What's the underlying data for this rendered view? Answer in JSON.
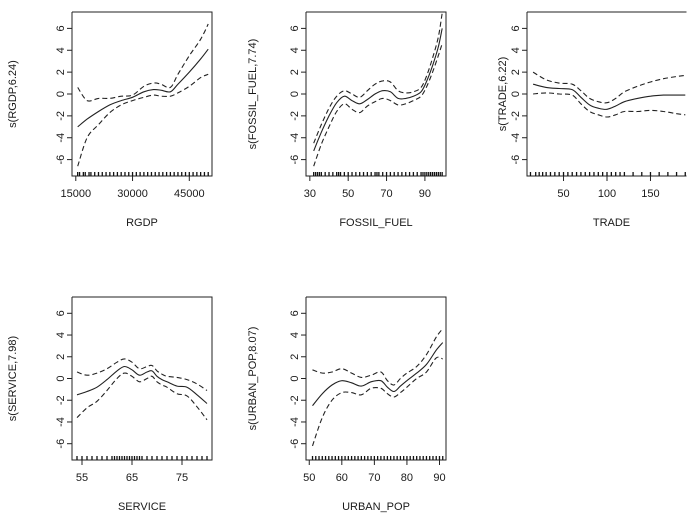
{
  "chart_data": [
    {
      "type": "line",
      "xlabel": "RGDP",
      "ylabel": "s(RGDP,6.24)",
      "xlim": [
        14000,
        51000
      ],
      "ylim": [
        -7.5,
        7.5
      ],
      "xticks": [
        "15000",
        "30000",
        "45000"
      ],
      "xtick_values": [
        15000,
        30000,
        45000
      ],
      "yticks": [
        "-6",
        "-4",
        "-2",
        "0",
        "2",
        "4",
        "6"
      ],
      "ytick_values": [
        -6,
        -4,
        -2,
        0,
        2,
        4,
        6
      ],
      "series": [
        {
          "style": "solid",
          "x": [
            15500,
            18000,
            21000,
            24000,
            27000,
            30000,
            33000,
            35500,
            37500,
            40000,
            42000,
            45000,
            48000,
            50000
          ],
          "y": [
            -3.0,
            -2.3,
            -1.6,
            -1.0,
            -0.6,
            -0.3,
            0.2,
            0.4,
            0.35,
            0.2,
            0.9,
            2.0,
            3.2,
            4.1
          ]
        },
        {
          "style": "dashed",
          "x": [
            15500,
            18000,
            21000,
            24000,
            27000,
            30000,
            33000,
            35500,
            37500,
            40000,
            42000,
            45000,
            48000,
            50000
          ],
          "y": [
            0.6,
            -0.6,
            -0.4,
            -0.4,
            -0.2,
            -0.1,
            0.7,
            1.0,
            0.9,
            0.6,
            1.8,
            3.5,
            5.0,
            6.4
          ]
        },
        {
          "style": "dashed",
          "x": [
            15500,
            18000,
            21000,
            24000,
            27000,
            30000,
            33000,
            35500,
            37500,
            40000,
            42000,
            45000,
            48000,
            50000
          ],
          "y": [
            -6.6,
            -4.0,
            -2.8,
            -1.7,
            -1.0,
            -0.6,
            -0.3,
            -0.1,
            -0.2,
            -0.2,
            0.1,
            0.7,
            1.5,
            1.8
          ]
        }
      ],
      "rug": [
        15500,
        16000,
        17000,
        17500,
        18500,
        19000,
        20000,
        21000,
        22000,
        23000,
        24000,
        25000,
        26000,
        27000,
        28000,
        29000,
        30000,
        31000,
        32000,
        33000,
        34000,
        35000,
        36000,
        37000,
        38000,
        39000,
        40000,
        41000,
        42000,
        43000,
        44000,
        45000,
        46000,
        47000,
        48000,
        49000,
        50000
      ]
    },
    {
      "type": "line",
      "xlabel": "FOSSIL_FUEL",
      "ylabel": "s(FOSSIL_FUEL,7.74)",
      "xlim": [
        28,
        101
      ],
      "ylim": [
        -7.5,
        7.5
      ],
      "xticks": [
        "30",
        "50",
        "70",
        "90"
      ],
      "xtick_values": [
        30,
        50,
        70,
        90
      ],
      "yticks": [
        "-6",
        "-4",
        "-2",
        "0",
        "2",
        "4",
        "6"
      ],
      "ytick_values": [
        -6,
        -4,
        -2,
        0,
        2,
        4,
        6
      ],
      "series": [
        {
          "style": "solid",
          "x": [
            32,
            36,
            40,
            44,
            48,
            52,
            56,
            60,
            64,
            68,
            72,
            76,
            80,
            84,
            88,
            91,
            94,
            97,
            99
          ],
          "y": [
            -5.2,
            -3.5,
            -2.0,
            -0.8,
            -0.2,
            -0.6,
            -0.9,
            -0.5,
            0.0,
            0.3,
            0.2,
            -0.4,
            -0.4,
            -0.2,
            0.2,
            1.2,
            2.6,
            4.3,
            6.0
          ]
        },
        {
          "style": "dashed",
          "x": [
            32,
            36,
            40,
            44,
            48,
            52,
            56,
            60,
            64,
            68,
            72,
            76,
            80,
            84,
            88,
            91,
            94,
            97,
            99
          ],
          "y": [
            -4.5,
            -2.8,
            -1.3,
            -0.2,
            0.3,
            0.0,
            -0.3,
            0.3,
            0.9,
            1.2,
            1.1,
            0.3,
            0.1,
            0.2,
            0.6,
            1.7,
            3.3,
            5.2,
            7.4
          ]
        },
        {
          "style": "dashed",
          "x": [
            32,
            36,
            40,
            44,
            48,
            52,
            56,
            60,
            64,
            68,
            72,
            76,
            80,
            84,
            88,
            91,
            94,
            97,
            99
          ],
          "y": [
            -6.6,
            -4.6,
            -3.0,
            -1.6,
            -0.9,
            -1.4,
            -1.7,
            -1.1,
            -0.7,
            -0.4,
            -0.6,
            -1.0,
            -0.9,
            -0.6,
            -0.2,
            0.7,
            2.0,
            3.5,
            4.6
          ]
        }
      ],
      "rug": [
        32,
        33,
        34,
        35,
        36,
        38,
        40,
        42,
        44,
        45,
        46,
        48,
        50,
        52,
        54,
        56,
        58,
        60,
        62,
        64,
        65,
        66,
        68,
        70,
        72,
        74,
        76,
        78,
        80,
        82,
        84,
        86,
        88,
        89,
        90,
        91,
        92,
        93,
        94,
        95,
        96,
        97,
        98,
        99
      ]
    },
    {
      "type": "line",
      "xlabel": "TRADE",
      "ylabel": "s(TRADE,6.22)",
      "xlim": [
        8,
        192
      ],
      "ylim": [
        -7.5,
        7.5
      ],
      "xticks": [
        "50",
        "100",
        "150"
      ],
      "xtick_values": [
        50,
        100,
        150
      ],
      "yticks": [
        "-6",
        "-4",
        "-2",
        "0",
        "2",
        "4",
        "6"
      ],
      "ytick_values": [
        -6,
        -4,
        -2,
        0,
        2,
        4,
        6
      ],
      "series": [
        {
          "style": "solid",
          "x": [
            15,
            30,
            45,
            60,
            70,
            80,
            90,
            100,
            110,
            120,
            135,
            150,
            165,
            180,
            190
          ],
          "y": [
            0.9,
            0.6,
            0.5,
            0.4,
            -0.3,
            -1.0,
            -1.3,
            -1.4,
            -1.1,
            -0.7,
            -0.4,
            -0.2,
            -0.1,
            -0.1,
            -0.1
          ]
        },
        {
          "style": "dashed",
          "x": [
            15,
            30,
            45,
            60,
            70,
            80,
            90,
            100,
            110,
            120,
            135,
            150,
            165,
            180,
            190
          ],
          "y": [
            2.0,
            1.3,
            1.0,
            0.9,
            0.3,
            -0.4,
            -0.7,
            -0.8,
            -0.4,
            0.2,
            0.7,
            1.1,
            1.4,
            1.6,
            1.7
          ]
        },
        {
          "style": "dashed",
          "x": [
            15,
            30,
            45,
            60,
            70,
            80,
            90,
            100,
            110,
            120,
            135,
            150,
            165,
            180,
            190
          ],
          "y": [
            0.0,
            0.1,
            0.0,
            -0.1,
            -0.9,
            -1.6,
            -1.9,
            -2.1,
            -1.9,
            -1.6,
            -1.6,
            -1.5,
            -1.6,
            -1.8,
            -1.9
          ]
        }
      ],
      "rug": [
        12,
        18,
        22,
        26,
        30,
        35,
        40,
        45,
        50,
        55,
        60,
        65,
        70,
        75,
        80,
        85,
        90,
        95,
        100,
        105,
        110,
        115,
        120,
        130,
        140,
        150,
        160,
        170,
        180,
        190
      ]
    },
    {
      "type": "line",
      "xlabel": "SERVICE",
      "ylabel": "s(SERVICE,7.98)",
      "xlim": [
        53,
        81
      ],
      "ylim": [
        -7.5,
        7.5
      ],
      "xticks": [
        "55",
        "65",
        "75"
      ],
      "xtick_values": [
        55,
        65,
        75
      ],
      "yticks": [
        "-6",
        "-4",
        "-2",
        "0",
        "2",
        "4",
        "6"
      ],
      "ytick_values": [
        -6,
        -4,
        -2,
        0,
        2,
        4,
        6
      ],
      "series": [
        {
          "style": "solid",
          "x": [
            54,
            56,
            58,
            60,
            62,
            63.5,
            65,
            66.5,
            68,
            69,
            70,
            71,
            72,
            74,
            76,
            78,
            80
          ],
          "y": [
            -1.5,
            -1.2,
            -0.8,
            -0.1,
            0.7,
            1.1,
            0.8,
            0.3,
            0.6,
            0.7,
            0.2,
            -0.1,
            -0.3,
            -0.7,
            -0.8,
            -1.5,
            -2.3
          ]
        },
        {
          "style": "dashed",
          "x": [
            54,
            56,
            58,
            60,
            62,
            63.5,
            65,
            66.5,
            68,
            69,
            70,
            71,
            72,
            74,
            76,
            78,
            80
          ],
          "y": [
            0.6,
            0.3,
            0.5,
            0.9,
            1.5,
            1.8,
            1.5,
            0.9,
            1.1,
            1.2,
            0.7,
            0.4,
            0.2,
            0.1,
            -0.1,
            -0.5,
            -1.1
          ]
        },
        {
          "style": "dashed",
          "x": [
            54,
            56,
            58,
            60,
            62,
            63.5,
            65,
            66.5,
            68,
            69,
            70,
            71,
            72,
            74,
            76,
            78,
            80
          ],
          "y": [
            -3.6,
            -2.7,
            -2.1,
            -1.1,
            0.0,
            0.5,
            0.2,
            -0.3,
            0.0,
            0.2,
            -0.3,
            -0.6,
            -0.8,
            -1.4,
            -1.6,
            -2.6,
            -3.8
          ]
        }
      ],
      "rug": [
        54,
        55,
        56,
        57,
        58,
        59,
        60,
        61,
        61.5,
        62,
        62.5,
        63,
        63.5,
        64,
        64.5,
        65,
        65.5,
        66,
        66.5,
        67,
        68,
        69,
        70,
        71,
        72,
        73,
        74,
        75,
        76,
        77,
        78,
        79,
        80
      ]
    },
    {
      "type": "line",
      "xlabel": "URBAN_POP",
      "ylabel": "s(URBAN_POP,8.07)",
      "xlim": [
        49,
        92
      ],
      "ylim": [
        -7.5,
        7.5
      ],
      "xticks": [
        "50",
        "60",
        "70",
        "80",
        "90"
      ],
      "xtick_values": [
        50,
        60,
        70,
        80,
        90
      ],
      "yticks": [
        "-6",
        "-4",
        "-2",
        "0",
        "2",
        "4",
        "6"
      ],
      "ytick_values": [
        -6,
        -4,
        -2,
        0,
        2,
        4,
        6
      ],
      "series": [
        {
          "style": "solid",
          "x": [
            51,
            54,
            57,
            60,
            63,
            66,
            69,
            72,
            74,
            76,
            78,
            80,
            83,
            86,
            89,
            91
          ],
          "y": [
            -2.5,
            -1.4,
            -0.6,
            -0.2,
            -0.4,
            -0.7,
            -0.3,
            -0.2,
            -0.8,
            -1.2,
            -0.7,
            -0.2,
            0.5,
            1.3,
            2.6,
            3.3
          ]
        },
        {
          "style": "dashed",
          "x": [
            51,
            54,
            57,
            60,
            63,
            66,
            69,
            72,
            74,
            76,
            78,
            80,
            83,
            86,
            89,
            91
          ],
          "y": [
            0.8,
            0.5,
            0.6,
            0.9,
            0.5,
            0.1,
            0.3,
            0.6,
            -0.2,
            -0.6,
            0.0,
            0.5,
            1.1,
            2.2,
            3.8,
            4.6
          ]
        },
        {
          "style": "dashed",
          "x": [
            51,
            54,
            57,
            60,
            63,
            66,
            69,
            72,
            74,
            76,
            78,
            80,
            83,
            86,
            89,
            91
          ],
          "y": [
            -6.2,
            -3.6,
            -2.0,
            -1.3,
            -1.3,
            -1.5,
            -0.9,
            -0.9,
            -1.4,
            -1.7,
            -1.3,
            -0.8,
            0.0,
            0.6,
            1.9,
            1.8
          ]
        }
      ],
      "rug": [
        51,
        52,
        53,
        54,
        55,
        56,
        57,
        58,
        59,
        60,
        61,
        62,
        63,
        64,
        65,
        66,
        67,
        68,
        69,
        70,
        71,
        72,
        73,
        74,
        75,
        76,
        77,
        78,
        79,
        80,
        81,
        82,
        83,
        84,
        85,
        86,
        87,
        88,
        89,
        90,
        91
      ]
    }
  ]
}
